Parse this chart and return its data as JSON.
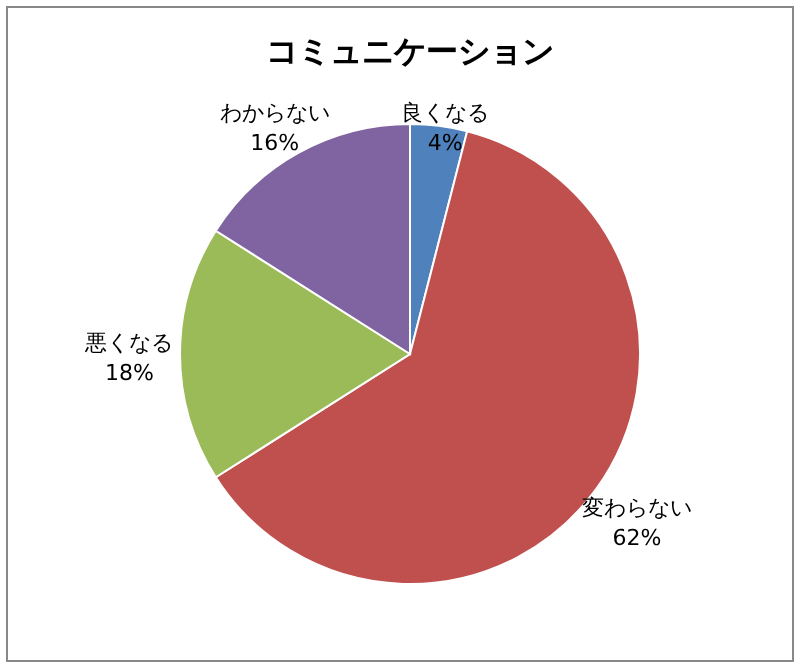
{
  "chart_data": {
    "type": "pie",
    "title": "コミュニケーション",
    "categories": [
      "良くなる",
      "変わらない",
      "悪くなる",
      "わからない"
    ],
    "values": [
      4,
      62,
      18,
      16
    ],
    "colors": [
      "#4f81bd",
      "#c0504d",
      "#9bbb59",
      "#8064a2"
    ],
    "value_labels": [
      "4%",
      "62%",
      "18%",
      "16%"
    ]
  }
}
